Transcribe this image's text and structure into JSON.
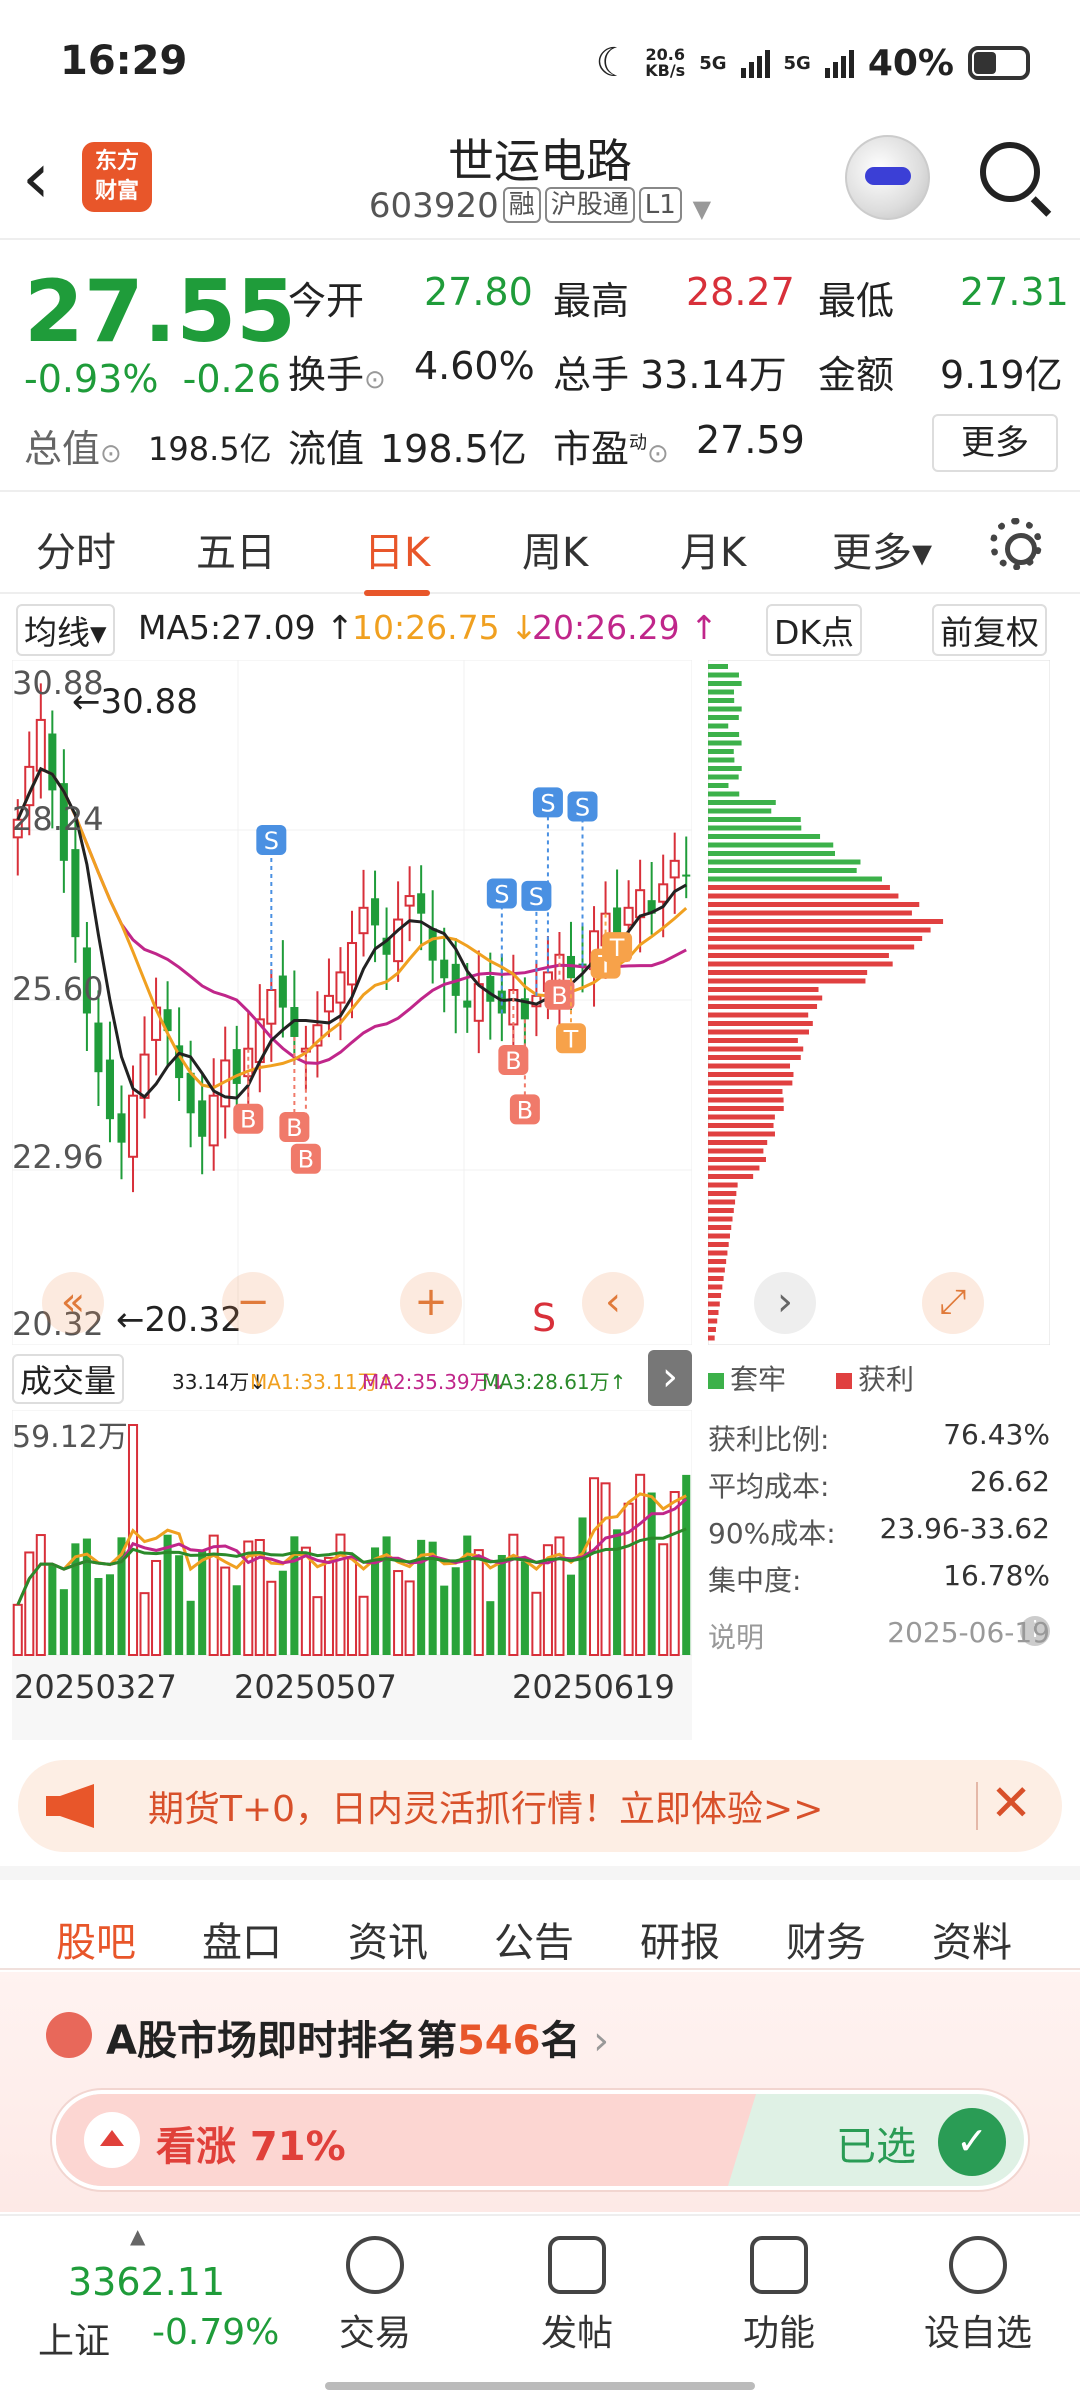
{
  "status": {
    "time": "16:29",
    "net_speed": "20.6\nKB/s",
    "net1": "5G",
    "net2": "5G",
    "battery": "40%"
  },
  "header": {
    "name": "世运电路",
    "code": "603920",
    "tags": [
      "融",
      "沪股通",
      "L1"
    ],
    "logo": "东方\n财富"
  },
  "quote": {
    "price": "27.55",
    "change_pct": "-0.93%",
    "change": "-0.26",
    "open_label": "今开",
    "open": "27.80",
    "high_label": "最高",
    "high": "28.27",
    "low_label": "最低",
    "low": "27.31",
    "turnover_label": "换手",
    "turnover": "4.60%",
    "volume_label": "总手",
    "volume": "33.14万",
    "amount_label": "金额",
    "amount": "9.19亿",
    "mktcap_label": "总值",
    "mktcap": "198.5亿",
    "float_label": "流值",
    "float": "198.5亿",
    "pe_label": "市盈",
    "pe_sup": "动",
    "pe": "27.59",
    "more": "更多"
  },
  "ktabs": [
    "分时",
    "五日",
    "日K",
    "周K",
    "月K",
    "更多▾"
  ],
  "mabar": {
    "type": "均线▾",
    "ma5": "MA5:27.09 ↑",
    "ma10": "10:26.75 ↓",
    "ma20": "20:26.29 ↑",
    "dk": "DK点",
    "adjust": "前复权"
  },
  "kchart": {
    "y_labels": [
      "30.88",
      "28.24",
      "25.60",
      "22.96",
      "20.32"
    ],
    "max_label": "←30.88",
    "min_label": "←20.32",
    "s_marker": "S"
  },
  "volbar": {
    "label": "成交量",
    "vol": "33.14万↓",
    "ma1": "MA1:33.11万↑",
    "ma2": "MA2:35.39万↓",
    "ma3": "MA3:28.61万↑",
    "max": "59.12万",
    "dates": [
      "20250327",
      "20250507",
      "20250619"
    ]
  },
  "chips": {
    "legend_trap": "套牢",
    "legend_profit": "获利",
    "rows": [
      {
        "label": "获利比例:",
        "value": "76.43%"
      },
      {
        "label": "平均成本:",
        "value": "26.62"
      },
      {
        "label": "90%成本:",
        "value": "23.96-33.62"
      },
      {
        "label": "集中度:",
        "value": "16.78%"
      }
    ],
    "note": "说明",
    "date": "2025-06-19"
  },
  "banner": {
    "text": "期货T+0，日内灵活抓行情！立即体验>>"
  },
  "subtabs": [
    "股吧",
    "盘口",
    "资讯",
    "公告",
    "研报",
    "财务",
    "资料"
  ],
  "rank": {
    "prefix": "A股市场即时排名第",
    "num": "546",
    "suffix": "名"
  },
  "vote": {
    "up": "看涨 71%",
    "chosen": "已选",
    "up_pct": 71
  },
  "bottomnav": {
    "index_value": "3362.11",
    "index_name": "上证",
    "index_change": "-0.79%",
    "items": [
      "交易",
      "发帖",
      "功能",
      "设自选"
    ]
  },
  "colors": {
    "up": "#d8303a",
    "down": "#1f9c3a",
    "ma10": "#f0a020",
    "ma20": "#c0268a",
    "accent": "#e8562a"
  }
}
